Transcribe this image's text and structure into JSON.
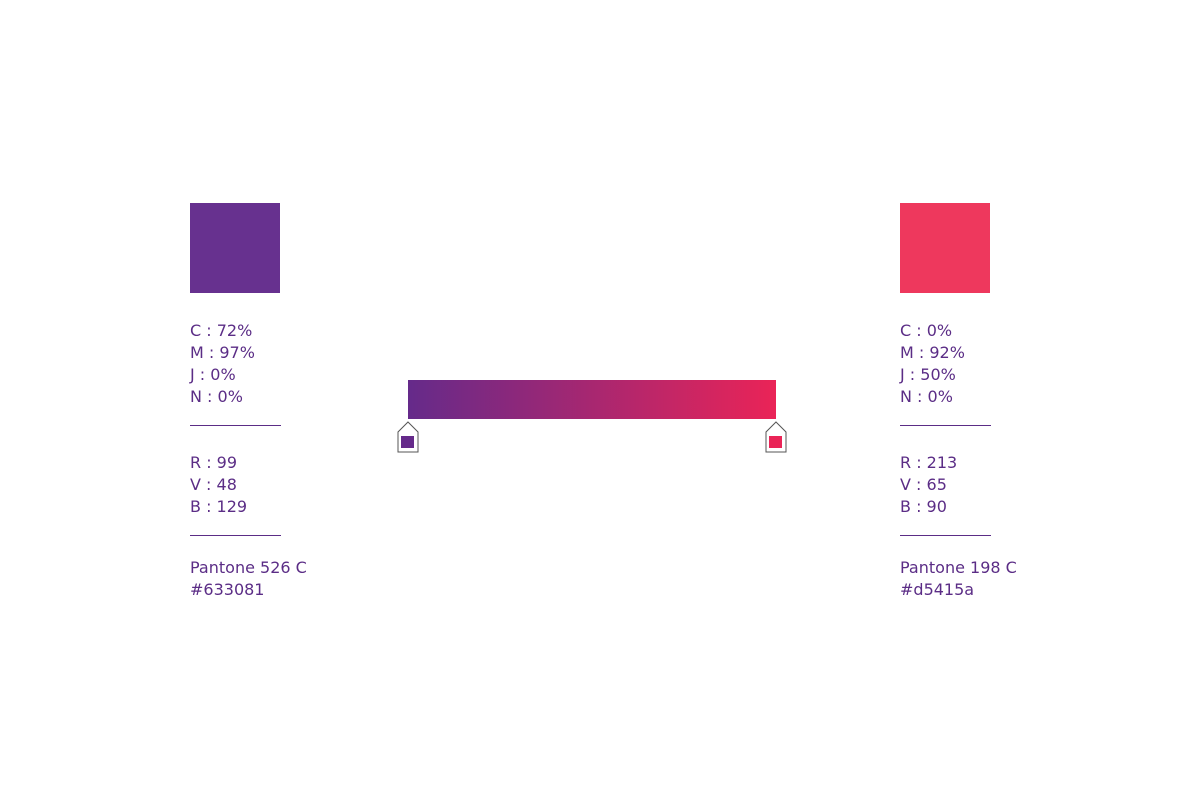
{
  "swatches": [
    {
      "color": "#67318f",
      "cmyk": [
        "C : 72%",
        "M : 97%",
        "J : 0%",
        "N : 0%"
      ],
      "rgb": [
        "R : 99",
        "V : 48",
        "B : 129"
      ],
      "pantone": "Pantone 526 C",
      "hex": "#633081"
    },
    {
      "color": "#ee385d",
      "cmyk": [
        "C : 0%",
        "M : 92%",
        "J : 50%",
        "N : 0%"
      ],
      "rgb": [
        "R : 213",
        "V : 65",
        "B : 90"
      ],
      "pantone": "Pantone 198 C",
      "hex": "#d5415a"
    }
  ],
  "gradient": {
    "from": "#652a8a",
    "to": "#ea2457"
  },
  "text_color": "#5b2d86"
}
